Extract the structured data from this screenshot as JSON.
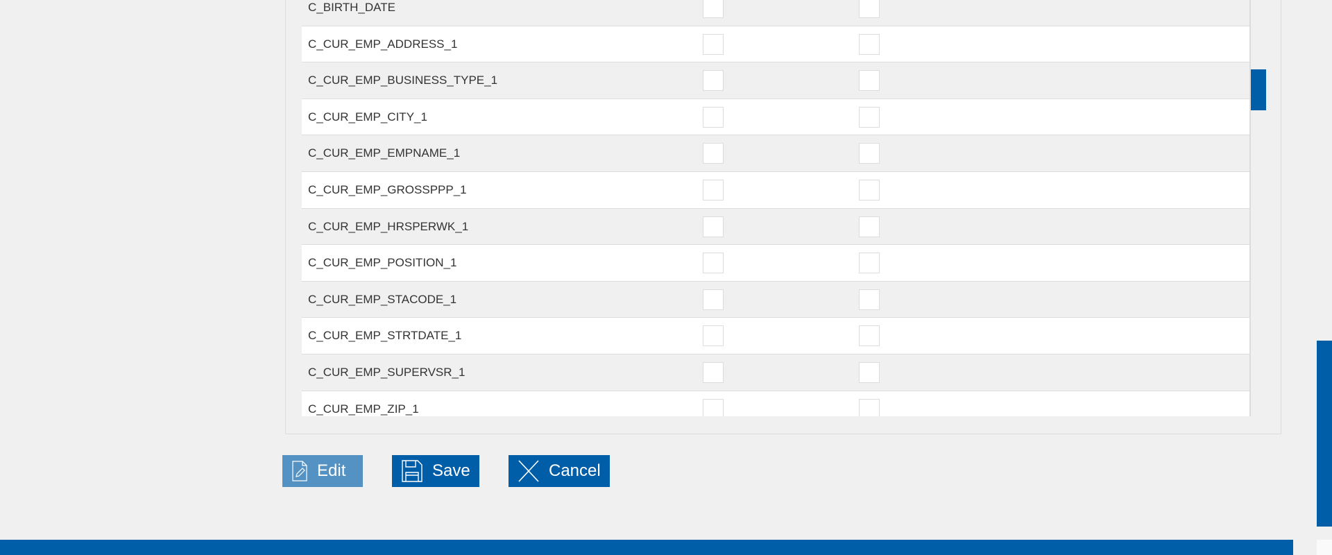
{
  "table": {
    "rows": [
      {
        "name": "C_BIRTH_DATE"
      },
      {
        "name": "C_CUR_EMP_ADDRESS_1"
      },
      {
        "name": "C_CUR_EMP_BUSINESS_TYPE_1"
      },
      {
        "name": "C_CUR_EMP_CITY_1"
      },
      {
        "name": "C_CUR_EMP_EMPNAME_1"
      },
      {
        "name": "C_CUR_EMP_GROSSPPP_1"
      },
      {
        "name": "C_CUR_EMP_HRSPERWK_1"
      },
      {
        "name": "C_CUR_EMP_POSITION_1"
      },
      {
        "name": "C_CUR_EMP_STACODE_1"
      },
      {
        "name": "C_CUR_EMP_STRTDATE_1"
      },
      {
        "name": "C_CUR_EMP_SUPERVSR_1"
      },
      {
        "name": "C_CUR_EMP_ZIP_1"
      }
    ]
  },
  "buttons": {
    "edit": "Edit",
    "save": "Save",
    "cancel": "Cancel"
  },
  "colors": {
    "accent": "#005ea8",
    "edit_disabled": "#5592c4"
  },
  "icons": {
    "edit": "document-pencil-icon",
    "save": "floppy-disk-icon",
    "cancel": "x-icon"
  }
}
